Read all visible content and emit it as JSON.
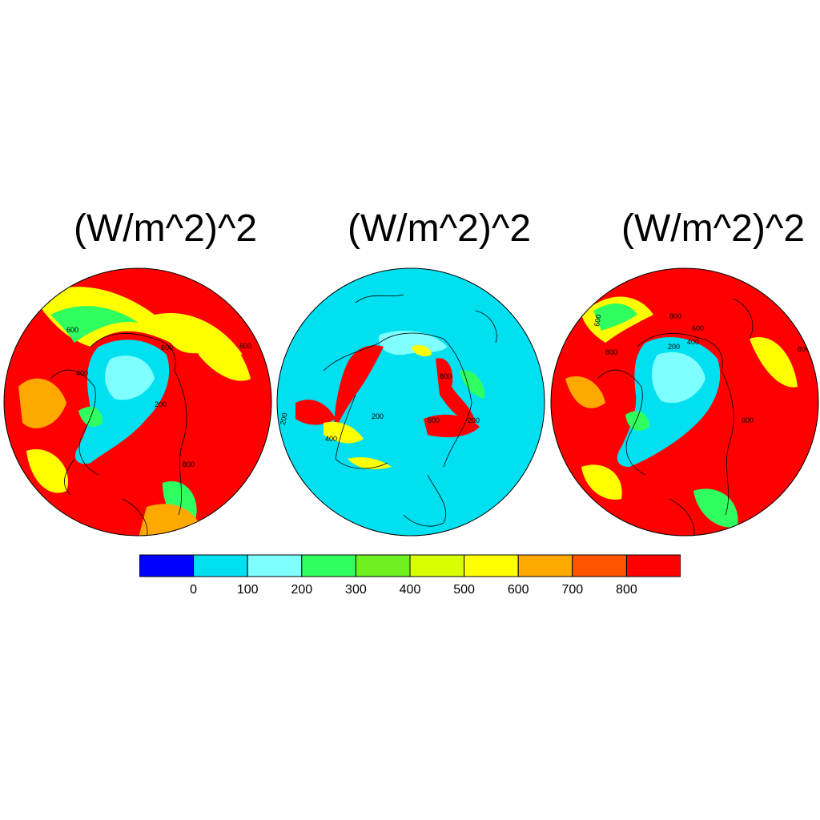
{
  "panels": [
    {
      "title": "(W/m^2)^2",
      "contour_labels": [
        "400",
        "600",
        "800",
        "200",
        "600",
        "600"
      ]
    },
    {
      "title": "(W/m^2)^2",
      "contour_labels": [
        "200",
        "400",
        "200",
        "600",
        "800",
        "200"
      ]
    },
    {
      "title": "(W/m^2)^2",
      "contour_labels": [
        "800",
        "600",
        "200",
        "400",
        "600",
        "600",
        "800",
        "600"
      ]
    }
  ],
  "colorbar": {
    "labels": [
      "0",
      "100",
      "200",
      "300",
      "400",
      "500",
      "600",
      "700",
      "800"
    ],
    "colors": [
      "#0000ff",
      "#00e0f0",
      "#7fffff",
      "#30ff60",
      "#70f020",
      "#d8ff00",
      "#ffff00",
      "#ffa800",
      "#ff5500",
      "#ff0000"
    ]
  },
  "colors": {
    "ocean_low": "#00e0f0",
    "ice_low": "#7fffff",
    "high": "#ff0000",
    "mid_orange": "#ffa800",
    "mid_yellow": "#ffff00",
    "mid_green": "#30ff60",
    "coast": "#000000"
  }
}
